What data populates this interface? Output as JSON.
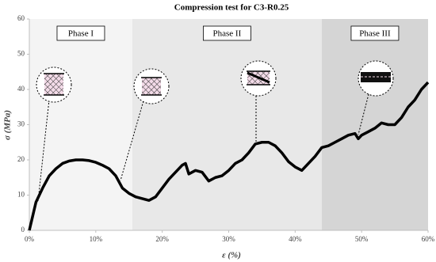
{
  "chart_data": {
    "type": "line",
    "title": "Compression test for C3-R0.25",
    "x_label": "ε (%)",
    "y_label": "σ (MPa)",
    "xlim": [
      0,
      60
    ],
    "ylim": [
      0,
      60
    ],
    "xticks": [
      {
        "value": 0,
        "label": "0%"
      },
      {
        "value": 10,
        "label": "10%"
      },
      {
        "value": 20,
        "label": "20%"
      },
      {
        "value": 30,
        "label": "30%"
      },
      {
        "value": 40,
        "label": "40%"
      },
      {
        "value": 50,
        "label": "50%"
      },
      {
        "value": 60,
        "label": "60%"
      }
    ],
    "yticks": [
      0,
      10,
      20,
      30,
      40,
      50,
      60
    ],
    "phases": [
      {
        "label": "Phase I",
        "range": [
          0,
          15.5
        ],
        "color": "#f4f4f4"
      },
      {
        "label": "Phase II",
        "range": [
          15.5,
          44
        ],
        "color": "#e8e8e8"
      },
      {
        "label": "Phase III",
        "range": [
          44,
          60
        ],
        "color": "#d5d5d5"
      }
    ],
    "x": [
      0,
      0.5,
      1,
      2,
      3,
      4,
      5,
      6,
      7,
      8,
      9,
      10,
      11,
      12,
      13,
      14,
      15,
      16,
      17,
      18,
      19,
      20,
      21,
      22,
      23,
      23.5,
      24,
      25,
      26,
      27,
      28,
      29,
      30,
      31,
      32,
      33,
      34,
      35,
      36,
      37,
      38,
      39,
      40,
      41,
      42,
      43,
      44,
      45,
      46,
      47,
      48,
      49,
      49.5,
      50,
      51,
      52,
      53,
      54,
      55,
      56,
      57,
      58,
      59,
      60
    ],
    "series": [
      {
        "color": "#000000",
        "values": [
          0,
          4,
          8,
          12,
          15.5,
          17.5,
          19,
          19.7,
          20,
          20,
          19.8,
          19.3,
          18.5,
          17.5,
          15.5,
          12,
          10.5,
          9.5,
          9,
          8.5,
          9.5,
          12,
          14.5,
          16.5,
          18.5,
          19,
          16,
          17,
          16.5,
          14,
          15,
          15.5,
          17,
          19,
          20,
          22,
          24.5,
          25,
          25,
          24,
          22,
          19.5,
          18,
          17,
          19,
          21,
          23.5,
          24,
          25,
          26,
          27,
          27.5,
          26,
          27,
          28,
          29,
          30.5,
          30,
          30,
          32,
          35,
          37,
          40,
          42
        ]
      }
    ]
  }
}
